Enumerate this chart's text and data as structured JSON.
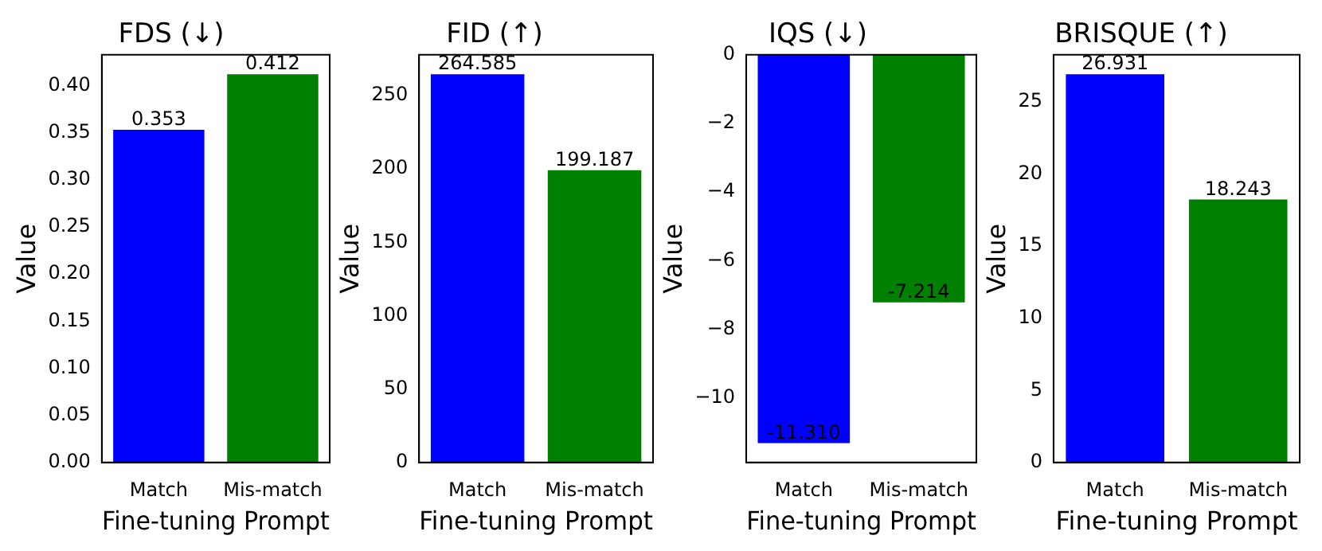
{
  "chart_data": [
    {
      "type": "bar",
      "title": "FDS (↓)",
      "xlabel": "Fine-tuning Prompt",
      "ylabel": "Value",
      "categories": [
        "Match",
        "Mis-match"
      ],
      "values": [
        0.353,
        0.412
      ],
      "colors": [
        "#0000ff",
        "#008000"
      ],
      "value_labels": [
        "0.353",
        "0.412"
      ],
      "ylim": [
        0,
        0.4326
      ],
      "yticks": [
        {
          "value": 0,
          "label": "0.00"
        },
        {
          "value": 0.05,
          "label": "0.05"
        },
        {
          "value": 0.1,
          "label": "0.10"
        },
        {
          "value": 0.15,
          "label": "0.15"
        },
        {
          "value": 0.2,
          "label": "0.20"
        },
        {
          "value": 0.25,
          "label": "0.25"
        },
        {
          "value": 0.3,
          "label": "0.30"
        },
        {
          "value": 0.35,
          "label": "0.35"
        },
        {
          "value": 0.4,
          "label": "0.40"
        }
      ]
    },
    {
      "type": "bar",
      "title": "FID (↑)",
      "xlabel": "Fine-tuning Prompt",
      "ylabel": "Value",
      "categories": [
        "Match",
        "Mis-match"
      ],
      "values": [
        264.585,
        199.187
      ],
      "colors": [
        "#0000ff",
        "#008000"
      ],
      "value_labels": [
        "264.585",
        "199.187"
      ],
      "ylim": [
        0,
        277.8
      ],
      "yticks": [
        0,
        50,
        100,
        150,
        200,
        250
      ]
    },
    {
      "type": "bar",
      "title": "IQS (↓)",
      "xlabel": "Fine-tuning Prompt",
      "ylabel": "Value",
      "categories": [
        "Match",
        "Mis-match"
      ],
      "values": [
        -11.31,
        -7.214
      ],
      "colors": [
        "#0000ff",
        "#008000"
      ],
      "value_labels": [
        "-11.310",
        "-7.214"
      ],
      "ylim": [
        -11.876,
        0
      ],
      "yticks": [
        {
          "value": -10,
          "label": "−10"
        },
        {
          "value": -8,
          "label": "−8"
        },
        {
          "value": -6,
          "label": "−6"
        },
        {
          "value": -4,
          "label": "−4"
        },
        {
          "value": -2,
          "label": "−2"
        },
        0
      ]
    },
    {
      "type": "bar",
      "title": "BRISQUE (↑)",
      "xlabel": "Fine-tuning Prompt",
      "ylabel": "Value",
      "categories": [
        "Match",
        "Mis-match"
      ],
      "values": [
        26.931,
        18.243
      ],
      "colors": [
        "#0000ff",
        "#008000"
      ],
      "value_labels": [
        "26.931",
        "18.243"
      ],
      "ylim": [
        0,
        28.28
      ],
      "yticks": [
        0,
        5,
        10,
        15,
        20,
        25
      ]
    }
  ]
}
